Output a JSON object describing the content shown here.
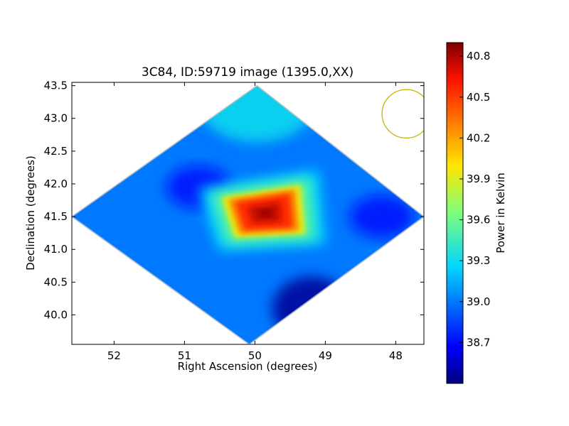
{
  "chart_data": {
    "type": "heatmap",
    "title": "3C84, ID:59719 image (1395.0,XX)",
    "xlabel": "Right Ascension (degrees)",
    "ylabel": "Declination (degrees)",
    "xlim": [
      52.6,
      47.6
    ],
    "ylim": [
      39.55,
      43.55
    ],
    "x_reversed": true,
    "x_ticks": [
      52,
      51,
      50,
      49,
      48
    ],
    "y_ticks": [
      40.0,
      40.5,
      41.0,
      41.5,
      42.0,
      42.5,
      43.0,
      43.5
    ],
    "x_tick_labels": [
      "52",
      "51",
      "50",
      "49",
      "48"
    ],
    "y_tick_labels": [
      "40.0",
      "40.5",
      "41.0",
      "41.5",
      "42.0",
      "42.5",
      "43.0",
      "43.5"
    ],
    "footprint_diamond": {
      "top": [
        49.97,
        43.5
      ],
      "right": [
        47.6,
        41.5
      ],
      "bottom": [
        50.08,
        39.55
      ],
      "left": [
        52.6,
        41.5
      ]
    },
    "hotspot": {
      "peak": [
        49.85,
        41.55
      ],
      "corners": [
        [
          49.45,
          41.9
        ],
        [
          49.4,
          41.3
        ],
        [
          50.2,
          41.25
        ],
        [
          50.35,
          41.75
        ]
      ],
      "peak_value": 40.85
    },
    "cold_spots": [
      {
        "ra": 50.8,
        "dec": 41.95,
        "value": 38.7
      },
      {
        "ra": 49.2,
        "dec": 40.1,
        "value": 38.45
      },
      {
        "ra": 48.2,
        "dec": 41.5,
        "value": 38.7
      }
    ],
    "background_value": 39.0,
    "top_value": 39.3,
    "beam_circle": {
      "ra": 47.85,
      "dec": 43.07,
      "radius_deg": 0.37,
      "color": "#c8b400"
    },
    "colorbar": {
      "label": "Power in Kelvin",
      "range": [
        38.4,
        40.9
      ],
      "ticks": [
        38.7,
        39.0,
        39.3,
        39.6,
        39.9,
        40.2,
        40.5,
        40.8
      ],
      "tick_labels": [
        "38.7",
        "39.0",
        "39.3",
        "39.6",
        "39.9",
        "40.2",
        "40.5",
        "40.8"
      ],
      "colormap": "jet"
    }
  }
}
